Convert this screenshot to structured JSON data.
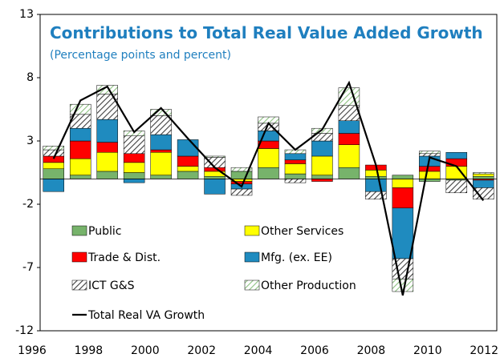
{
  "chart_data": {
    "type": "bar",
    "title": "Contributions to Total Real Value Added Growth",
    "subtitle": "(Percentage points and percent)",
    "categories": [
      "1996",
      null,
      "1998",
      null,
      "2000",
      null,
      "2002",
      null,
      "2004",
      null,
      "2006",
      null,
      "2008",
      null,
      "2010",
      null,
      "2012"
    ],
    "ylim": [
      -12,
      13
    ],
    "yticks": [
      -12,
      -7,
      -2,
      3,
      8,
      13
    ],
    "series": [
      {
        "name": "Public",
        "color": "#77b36b",
        "hatch": false,
        "values": [
          0.8,
          0.3,
          0.6,
          0.5,
          0.3,
          0.6,
          0.2,
          0.6,
          0.9,
          0.4,
          0.3,
          0.9,
          0.2,
          0.3,
          -0.2,
          -0.1,
          0.2
        ]
      },
      {
        "name": "Other Services",
        "color": "#ffff00",
        "hatch": false,
        "values": [
          0.5,
          1.3,
          1.5,
          0.8,
          1.8,
          0.4,
          0.4,
          -0.2,
          1.5,
          0.8,
          1.5,
          1.8,
          0.5,
          -0.7,
          0.6,
          1.0,
          0.2
        ]
      },
      {
        "name": "Trade & Dist.",
        "color": "#ff0000",
        "hatch": false,
        "values": [
          0.5,
          1.4,
          0.8,
          0.7,
          0.2,
          0.8,
          0.3,
          -0.2,
          0.6,
          0.3,
          -0.2,
          0.9,
          0.4,
          -1.6,
          0.4,
          0.6,
          -0.1
        ]
      },
      {
        "name": "Mfg. (ex. EE)",
        "color": "#1f8bbf",
        "hatch": false,
        "values": [
          -1.0,
          1.0,
          1.8,
          -0.3,
          1.2,
          1.3,
          -1.2,
          -0.4,
          0.8,
          0.5,
          1.2,
          1.0,
          -1.0,
          -4.0,
          0.8,
          0.5,
          -0.6
        ]
      },
      {
        "name": "ICT G&S",
        "color": "#404040",
        "hatch": true,
        "values": [
          0.5,
          1.1,
          2.0,
          1.4,
          1.5,
          0.0,
          0.8,
          -0.5,
          0.6,
          -0.3,
          0.6,
          1.2,
          -0.6,
          -1.6,
          0.2,
          -1.0,
          -0.9
        ]
      },
      {
        "name": "Other Production",
        "color": "#8cc080",
        "hatch": true,
        "values": [
          0.3,
          0.8,
          0.7,
          0.4,
          0.5,
          0.0,
          0.1,
          0.3,
          0.5,
          0.3,
          0.4,
          1.4,
          0.0,
          -1.0,
          0.2,
          0.0,
          0.1
        ]
      }
    ],
    "line": {
      "name": "Total Real VA Growth",
      "color": "#000000",
      "values": [
        1.6,
        6.2,
        7.3,
        3.7,
        5.6,
        3.2,
        0.9,
        -0.6,
        4.4,
        2.3,
        3.9,
        7.6,
        1.1,
        -9.2,
        1.7,
        1.0,
        -1.7
      ]
    }
  }
}
